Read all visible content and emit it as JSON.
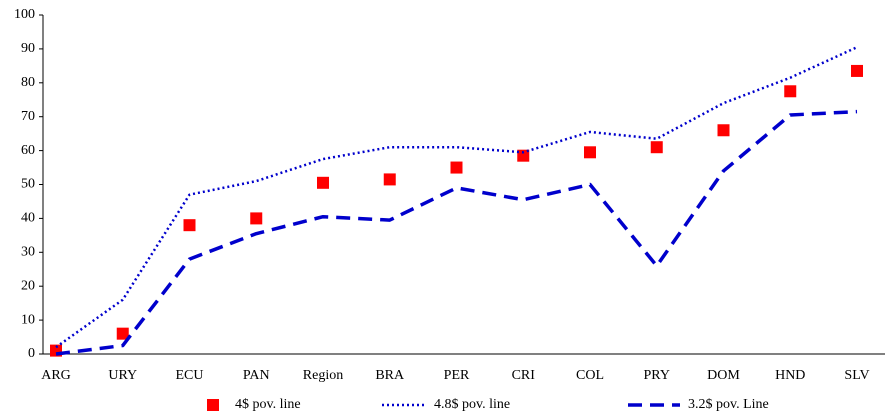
{
  "chart_data": {
    "type": "line",
    "categories": [
      "ARG",
      "URY",
      "ECU",
      "PAN",
      "Region",
      "BRA",
      "PER",
      "CRI",
      "COL",
      "PRY",
      "DOM",
      "HND",
      "SLV"
    ],
    "series": [
      {
        "name": "4$ pov. line",
        "color": "#ff0000",
        "style": "marker",
        "values": [
          1,
          6,
          38,
          40,
          50.5,
          51.5,
          55,
          58.5,
          59.5,
          61,
          66,
          77.5,
          83.5
        ]
      },
      {
        "name": "4.8$ pov. line",
        "color": "#0000cc",
        "style": "dotted",
        "values": [
          2,
          16,
          47,
          51,
          57.5,
          61,
          61,
          59.5,
          65.5,
          63.5,
          74,
          81.5,
          90.5
        ]
      },
      {
        "name": "3.2$ pov. Line",
        "color": "#0000cc",
        "style": "dashed",
        "values": [
          0,
          2.5,
          28,
          35.5,
          40.5,
          39.5,
          49,
          45.5,
          50,
          26,
          54,
          70.5,
          71.5
        ]
      }
    ],
    "ylim": [
      0,
      100
    ],
    "yticks": [
      0,
      10,
      20,
      30,
      40,
      50,
      60,
      70,
      80,
      90,
      100
    ],
    "grid": false
  }
}
